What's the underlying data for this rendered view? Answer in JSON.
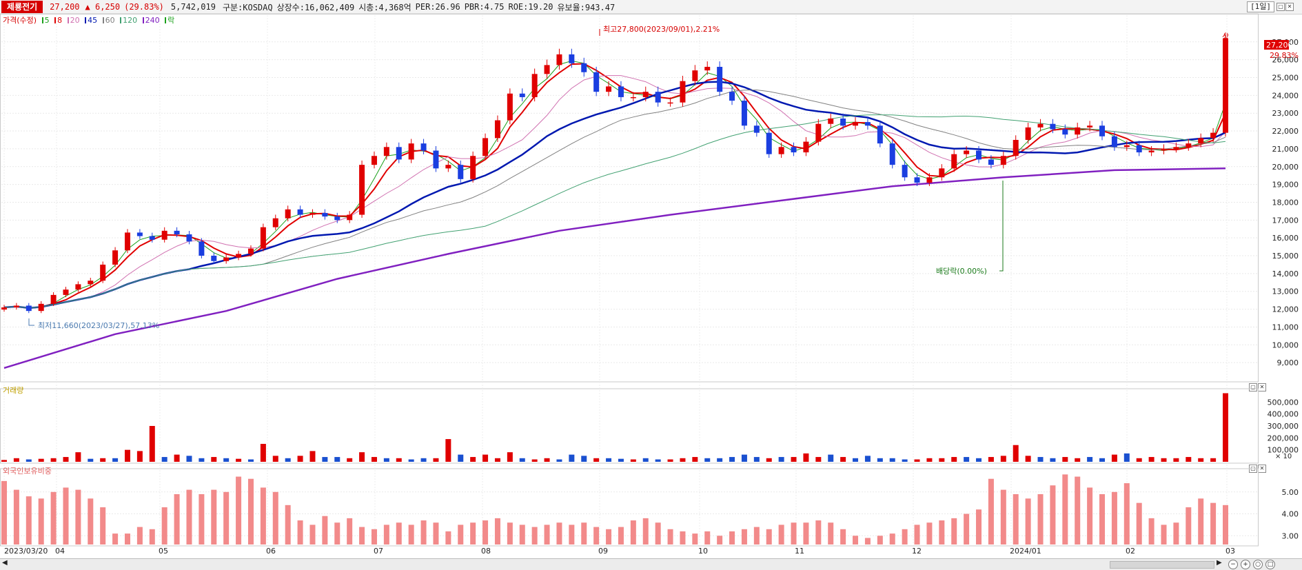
{
  "header": {
    "stock_name": "제룡전기",
    "price": "27,200",
    "change": "▲ 6,250",
    "change_pct": "(29.83%)",
    "volume": "5,742,019",
    "market": "구분:KOSDAQ",
    "listed_shares": "상장수:16,062,409",
    "market_cap": "시총:4,368억",
    "per": "PER:26.96",
    "pbr": "PBR:4.75",
    "roe": "ROE:19.20",
    "reserve_ratio": "유보율:943.47",
    "period_button": "[1일]"
  },
  "price_pane": {
    "legend_title": "가격(수정)",
    "ma_labels": [
      "5",
      "8",
      "20",
      "45",
      "60",
      "120",
      "240"
    ],
    "ma_colors": [
      "#1aa01a",
      "#e00000",
      "#d070b0",
      "#0018b0",
      "#808080",
      "#40a070",
      "#8020c0"
    ],
    "extra_label": "락",
    "high_annotation": "최고27,800(2023/09/01),2.21%",
    "low_annotation": "최저11,660(2023/03/27),57.13%",
    "dividend_annotation": "배당락(0.00%)",
    "limit_up_label": "상",
    "last_price_tag": "27,200",
    "last_pct_tag": "29.83%"
  },
  "volume_pane": {
    "legend_title": "거래량",
    "unit_label": "× 10"
  },
  "foreign_pane": {
    "legend_title": "외국인보유비중"
  },
  "x_labels": [
    "2023/03/20",
    "04",
    "05",
    "06",
    "07",
    "08",
    "09",
    "10",
    "11",
    "12",
    "2024/01",
    "02",
    "03"
  ],
  "chart_data": [
    {
      "type": "candlestick",
      "ylim": [
        8000,
        28500
      ],
      "y_ticks": [
        9000,
        10000,
        11000,
        12000,
        13000,
        14000,
        15000,
        16000,
        17000,
        18000,
        19000,
        20000,
        21000,
        22000,
        23000,
        24000,
        25000,
        26000,
        27000
      ],
      "y_tick_labels": [
        "9,000",
        "10,000",
        "11,000",
        "12,000",
        "13,000",
        "14,000",
        "15,000",
        "16,000",
        "17,000",
        "18,000",
        "19,000",
        "20,000",
        "21,000",
        "22,000",
        "23,000",
        "24,000",
        "25,000",
        "26,000",
        "27,000"
      ],
      "x": [
        "2023/03/20",
        "04",
        "05",
        "06",
        "07",
        "08",
        "09",
        "10",
        "11",
        "12",
        "2024/01",
        "02",
        "03"
      ],
      "close_path": [
        12100,
        12200,
        11900,
        12300,
        12800,
        13100,
        13400,
        13600,
        14500,
        15300,
        16300,
        16100,
        15900,
        16400,
        16200,
        15800,
        15000,
        14700,
        14900,
        15100,
        15400,
        16600,
        17100,
        17600,
        17300,
        17400,
        17200,
        17000,
        17300,
        20100,
        20600,
        21100,
        20400,
        21300,
        20900,
        19900,
        20100,
        19300,
        20600,
        21600,
        22600,
        24100,
        23900,
        25200,
        25700,
        26300,
        25800,
        25300,
        24200,
        24500,
        23900,
        23900,
        24200,
        23600,
        23600,
        24800,
        25400,
        25600,
        24200,
        23700,
        22300,
        21900,
        20700,
        21100,
        20800,
        21400,
        22400,
        22700,
        22300,
        22500,
        22300,
        21300,
        20100,
        19400,
        19100,
        19400,
        19900,
        20700,
        20900,
        20400,
        20100,
        20600,
        21500,
        22200,
        22400,
        22100,
        21800,
        22200,
        22300,
        21700,
        21100,
        21200,
        20800,
        20900,
        21000,
        21100,
        21300,
        21600,
        21900,
        27200
      ],
      "ma240": [
        8700,
        10600,
        11900,
        13700,
        15100,
        16400,
        17300,
        18100,
        18900,
        19400,
        19800,
        19900
      ]
    },
    {
      "type": "bar",
      "title": "거래량",
      "y_tick_labels": [
        "100,000",
        "200,000",
        "300,000",
        "400,000",
        "500,000"
      ],
      "ylim": [
        0,
        600000
      ],
      "values": [
        15000,
        30000,
        20000,
        25000,
        30000,
        40000,
        80000,
        25000,
        30000,
        30000,
        100000,
        90000,
        300000,
        40000,
        60000,
        50000,
        30000,
        40000,
        30000,
        25000,
        20000,
        150000,
        50000,
        30000,
        50000,
        90000,
        40000,
        40000,
        30000,
        80000,
        40000,
        30000,
        30000,
        20000,
        30000,
        30000,
        190000,
        60000,
        40000,
        60000,
        30000,
        80000,
        30000,
        20000,
        30000,
        20000,
        60000,
        50000,
        30000,
        30000,
        25000,
        20000,
        30000,
        20000,
        20000,
        30000,
        40000,
        30000,
        30000,
        40000,
        60000,
        40000,
        30000,
        40000,
        40000,
        70000,
        40000,
        60000,
        40000,
        30000,
        50000,
        30000,
        30000,
        20000,
        20000,
        30000,
        30000,
        40000,
        40000,
        30000,
        40000,
        50000,
        140000,
        50000,
        40000,
        30000,
        40000,
        30000,
        40000,
        30000,
        60000,
        70000,
        30000,
        40000,
        30000,
        30000,
        40000,
        30000,
        30000,
        574000
      ],
      "up_flags": [
        1,
        1,
        0,
        1,
        1,
        1,
        1,
        0,
        1,
        0,
        1,
        1,
        1,
        0,
        1,
        0,
        0,
        1,
        0,
        1,
        0,
        1,
        1,
        0,
        1,
        1,
        0,
        0,
        1,
        1,
        1,
        0,
        1,
        0,
        0,
        1,
        1,
        0,
        1,
        1,
        1,
        1,
        0,
        1,
        1,
        0,
        0,
        0,
        1,
        0,
        0,
        1,
        0,
        0,
        1,
        1,
        1,
        0,
        0,
        0,
        0,
        0,
        1,
        0,
        1,
        1,
        1,
        0,
        1,
        0,
        0,
        0,
        0,
        0,
        1,
        1,
        1,
        1,
        0,
        0,
        1,
        1,
        1,
        1,
        0,
        0,
        1,
        1,
        0,
        0,
        1,
        0,
        1,
        1,
        1,
        1,
        1,
        1,
        1,
        1
      ]
    },
    {
      "type": "bar",
      "title": "외국인보유비중",
      "ylim": [
        2.6,
        6.0
      ],
      "y_ticks": [
        3.0,
        4.0,
        5.0
      ],
      "y_tick_labels": [
        "3.00",
        "4.00",
        "5.00"
      ],
      "values": [
        5.5,
        5.1,
        4.8,
        4.7,
        5.0,
        5.2,
        5.1,
        4.7,
        4.3,
        3.1,
        3.1,
        3.4,
        3.3,
        4.3,
        4.9,
        5.1,
        4.9,
        5.1,
        5.0,
        5.7,
        5.6,
        5.2,
        5.0,
        4.4,
        3.7,
        3.5,
        3.9,
        3.6,
        3.8,
        3.4,
        3.3,
        3.5,
        3.6,
        3.5,
        3.7,
        3.6,
        3.2,
        3.5,
        3.6,
        3.7,
        3.8,
        3.6,
        3.5,
        3.4,
        3.5,
        3.6,
        3.5,
        3.6,
        3.4,
        3.3,
        3.4,
        3.7,
        3.8,
        3.6,
        3.3,
        3.2,
        3.1,
        3.2,
        3.0,
        3.2,
        3.3,
        3.4,
        3.3,
        3.5,
        3.6,
        3.6,
        3.7,
        3.6,
        3.3,
        3.0,
        2.9,
        3.0,
        3.1,
        3.3,
        3.5,
        3.6,
        3.7,
        3.8,
        4.0,
        4.2,
        5.6,
        5.1,
        4.9,
        4.7,
        4.9,
        5.3,
        5.8,
        5.7,
        5.2,
        4.9,
        5.0,
        5.4,
        4.5,
        3.8,
        3.5,
        3.6,
        4.3,
        4.7,
        4.5,
        4.4
      ]
    }
  ]
}
